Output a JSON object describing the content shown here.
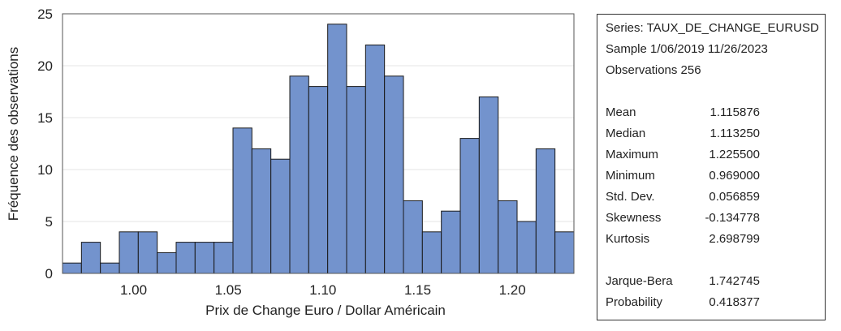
{
  "chart_data": {
    "type": "bar",
    "xlabel": "Prix de Change Euro / Dollar Américain",
    "ylabel": "Fréquence des observations",
    "bin_start": 0.9625,
    "bin_width": 0.01,
    "values": [
      1,
      3,
      1,
      4,
      4,
      2,
      3,
      3,
      3,
      14,
      12,
      11,
      19,
      18,
      24,
      18,
      22,
      19,
      7,
      4,
      6,
      13,
      17,
      7,
      5,
      12,
      4
    ],
    "xlim": [
      0.9625,
      1.2325
    ],
    "ylim": [
      0,
      25
    ],
    "xticks": [
      "1.00",
      "1.05",
      "1.10",
      "1.15",
      "1.20"
    ],
    "yticks": [
      "0",
      "5",
      "10",
      "15",
      "20",
      "25"
    ],
    "bar_color": "#7393cd",
    "bar_edge_color": "#1a1a1a",
    "grid": true
  },
  "stats": {
    "series": "Series: TAUX_DE_CHANGE_EURUSD",
    "sample": "Sample 1/06/2019 11/26/2023",
    "observations": "Observations 256",
    "rows": [
      {
        "label": "Mean",
        "value": "1.115876"
      },
      {
        "label": "Median",
        "value": "1.113250"
      },
      {
        "label": "Maximum",
        "value": "1.225500"
      },
      {
        "label": "Minimum",
        "value": "0.969000"
      },
      {
        "label": "Std. Dev.",
        "value": "0.056859"
      },
      {
        "label": "Skewness",
        "value": "-0.134778"
      },
      {
        "label": "Kurtosis",
        "value": "2.698799"
      }
    ],
    "test_rows": [
      {
        "label": "Jarque-Bera",
        "value": "1.742745"
      },
      {
        "label": "Probability",
        "value": "0.418377"
      }
    ]
  }
}
